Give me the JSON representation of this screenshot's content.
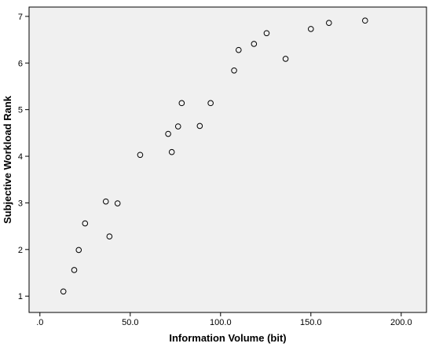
{
  "chart_data": {
    "type": "scatter",
    "title": "",
    "xlabel": "Information Volume (bit)",
    "ylabel": "Subjective Workload Rank",
    "xlim": [
      -6,
      214
    ],
    "ylim": [
      0.65,
      7.2
    ],
    "x_ticks": [
      0,
      50,
      100,
      150,
      200
    ],
    "x_tick_labels": [
      ".0",
      "50.0",
      "100.0",
      "150.0",
      "200.0"
    ],
    "y_ticks": [
      1,
      2,
      3,
      4,
      5,
      6,
      7
    ],
    "y_tick_labels": [
      "1",
      "2",
      "3",
      "4",
      "5",
      "6",
      "7"
    ],
    "grid": false,
    "legend": "none",
    "colors": {
      "plot_bg": "#f0f0f0",
      "marker": "#000000",
      "axis": "#000000"
    },
    "points": [
      {
        "x": 13,
        "y": 1.1
      },
      {
        "x": 19,
        "y": 1.56
      },
      {
        "x": 21.5,
        "y": 1.99
      },
      {
        "x": 25,
        "y": 2.56
      },
      {
        "x": 36.5,
        "y": 3.03
      },
      {
        "x": 38.5,
        "y": 2.28
      },
      {
        "x": 43,
        "y": 2.99
      },
      {
        "x": 55.5,
        "y": 4.03
      },
      {
        "x": 71,
        "y": 4.48
      },
      {
        "x": 73,
        "y": 4.09
      },
      {
        "x": 76.5,
        "y": 4.64
      },
      {
        "x": 78.5,
        "y": 5.14
      },
      {
        "x": 88.5,
        "y": 4.65
      },
      {
        "x": 94.5,
        "y": 5.14
      },
      {
        "x": 107.5,
        "y": 5.84
      },
      {
        "x": 110,
        "y": 6.28
      },
      {
        "x": 118.5,
        "y": 6.41
      },
      {
        "x": 125.5,
        "y": 6.64
      },
      {
        "x": 136,
        "y": 6.09
      },
      {
        "x": 150,
        "y": 6.73
      },
      {
        "x": 160,
        "y": 6.86
      },
      {
        "x": 180,
        "y": 6.91
      }
    ]
  }
}
